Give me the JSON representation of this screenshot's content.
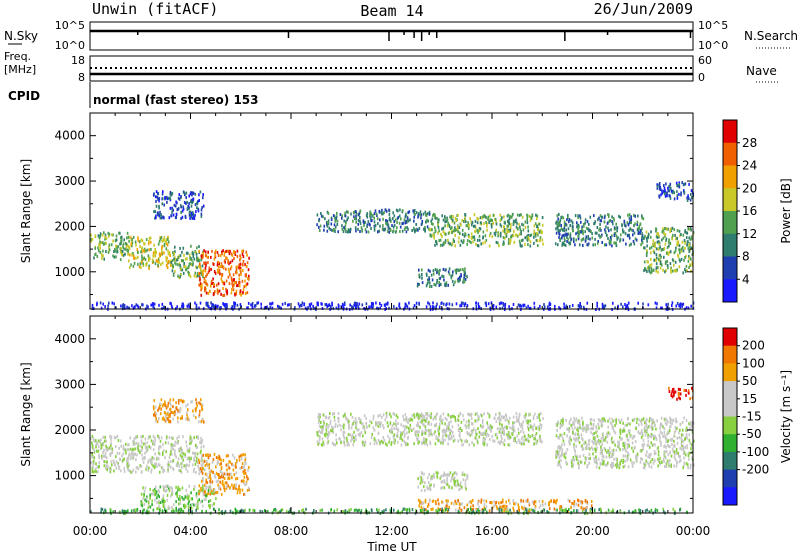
{
  "header": {
    "station": "Unwin (fitACF)",
    "beam": "Beam 14",
    "date": "26/Jun/2009"
  },
  "strips": {
    "nsky_label": "N.Sky",
    "nsearch_label": "N.Search",
    "nsky_ticks": [
      "10^5",
      "10^0"
    ],
    "freq_label": "Freq.",
    "freq_unit": "[MHz]",
    "freq_ticks": [
      "18",
      "8"
    ],
    "nave_label": "Nave",
    "nave_ticks": [
      "60",
      "0"
    ],
    "cpid_label": "CPID",
    "cpid_text": "normal (fast stereo) 153"
  },
  "chart_data": [
    {
      "type": "heatmap",
      "name": "power",
      "ylabel": "Slant Range [km]",
      "y_ticks": [
        "1000",
        "2000",
        "3000",
        "4000"
      ],
      "ylim": [
        180,
        4500
      ],
      "xlim": [
        0,
        24
      ],
      "colorbar_label": "Power [dB]",
      "colorbar_ticks": [
        "4",
        "8",
        "12",
        "16",
        "20",
        "24",
        "28"
      ],
      "colors": [
        "#1a1aff",
        "#1f3fb0",
        "#2f7d6e",
        "#50a050",
        "#c8c828",
        "#f0a000",
        "#f06000",
        "#e00000"
      ],
      "patches": [
        {
          "t": [
            0.0,
            1.5
          ],
          "r": [
            1300,
            1900
          ],
          "level": 3
        },
        {
          "t": [
            1.5,
            3.2
          ],
          "r": [
            1100,
            1800
          ],
          "level": 4
        },
        {
          "t": [
            3.2,
            4.5
          ],
          "r": [
            900,
            1600
          ],
          "level": 3
        },
        {
          "t": [
            4.3,
            6.3
          ],
          "r": [
            500,
            1500
          ],
          "level": 6
        },
        {
          "t": [
            2.5,
            4.5
          ],
          "r": [
            2200,
            2800
          ],
          "level": 1
        },
        {
          "t": [
            9.0,
            13.5
          ],
          "r": [
            1900,
            2400
          ],
          "level": 2
        },
        {
          "t": [
            13.5,
            18.0
          ],
          "r": [
            1600,
            2300
          ],
          "level": 3
        },
        {
          "t": [
            13.0,
            15.0
          ],
          "r": [
            700,
            1100
          ],
          "level": 2
        },
        {
          "t": [
            18.5,
            22.0
          ],
          "r": [
            1600,
            2300
          ],
          "level": 2
        },
        {
          "t": [
            22.0,
            24.0
          ],
          "r": [
            1000,
            2000
          ],
          "level": 3
        },
        {
          "t": [
            22.5,
            24.0
          ],
          "r": [
            2600,
            3000
          ],
          "level": 1
        },
        {
          "t": [
            0.0,
            24.0
          ],
          "r": [
            200,
            350
          ],
          "level": 0
        }
      ]
    },
    {
      "type": "heatmap",
      "name": "velocity",
      "ylabel": "Slant Range [km]",
      "y_ticks": [
        "1000",
        "2000",
        "3000",
        "4000"
      ],
      "ylim": [
        180,
        4500
      ],
      "xlim": [
        0,
        24
      ],
      "colorbar_label": "Velocity [m s⁻¹]",
      "colorbar_ticks": [
        "200",
        "100",
        "50",
        "15",
        "-15",
        "-50",
        "-100",
        "-200"
      ],
      "colors": [
        "#1a1aff",
        "#1f3fb0",
        "#2f7d6e",
        "#30b030",
        "#88d040",
        "#c8c8c8",
        "#c8c8c8",
        "#f0a000",
        "#f07800",
        "#e00000"
      ],
      "patches": [
        {
          "t": [
            0.0,
            4.5
          ],
          "r": [
            1100,
            1900
          ],
          "level": 5
        },
        {
          "t": [
            4.3,
            6.3
          ],
          "r": [
            600,
            1500
          ],
          "level": 7
        },
        {
          "t": [
            2.0,
            5.0
          ],
          "r": [
            300,
            800
          ],
          "level": 4
        },
        {
          "t": [
            2.5,
            4.5
          ],
          "r": [
            2200,
            2700
          ],
          "level": 7
        },
        {
          "t": [
            9.0,
            18.0
          ],
          "r": [
            1700,
            2400
          ],
          "level": 5
        },
        {
          "t": [
            13.0,
            15.0
          ],
          "r": [
            700,
            1100
          ],
          "level": 5
        },
        {
          "t": [
            18.5,
            24.0
          ],
          "r": [
            1200,
            2300
          ],
          "level": 5
        },
        {
          "t": [
            23.0,
            24.0
          ],
          "r": [
            2700,
            2950
          ],
          "level": 9
        },
        {
          "t": [
            13.0,
            20.0
          ],
          "r": [
            250,
            500
          ],
          "level": 7
        },
        {
          "t": [
            0.0,
            24.0
          ],
          "r": [
            200,
            300
          ],
          "level": 3
        }
      ]
    }
  ],
  "xaxis": {
    "label": "Time UT",
    "ticks": [
      "00:00",
      "04:00",
      "08:00",
      "12:00",
      "16:00",
      "20:00",
      "00:00"
    ]
  }
}
